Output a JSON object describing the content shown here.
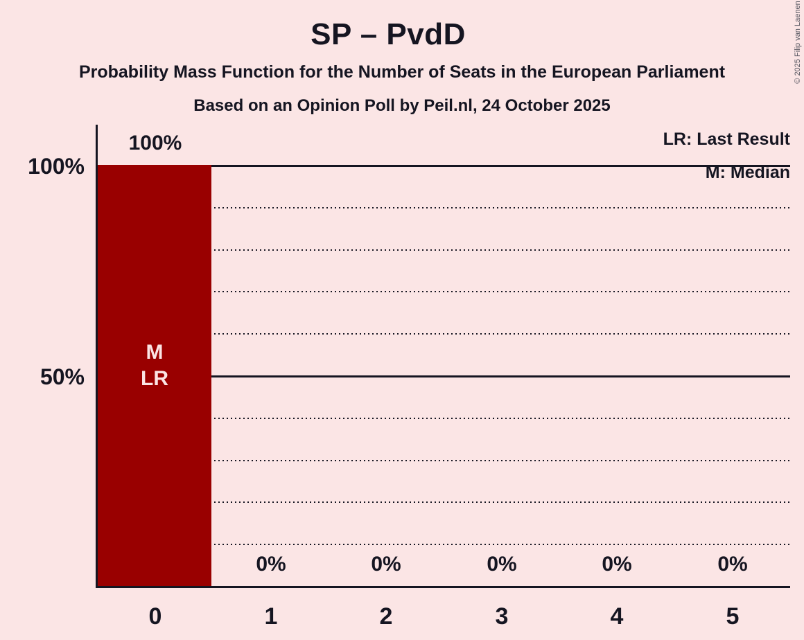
{
  "header": {
    "title": "SP – PvdD",
    "subtitle": "Probability Mass Function for the Number of Seats in the European Parliament",
    "poll_line": "Based on an Opinion Poll by Peil.nl, 24 October 2025"
  },
  "legend": {
    "last_result": "LR: Last Result",
    "median": "M: Median"
  },
  "copyright": "© 2025 Filip van Laenen",
  "colors": {
    "background": "#fbe5e5",
    "bar": "#990000",
    "ink": "#151521",
    "bar_label": "#fbe5e5"
  },
  "chart_data": {
    "type": "bar",
    "title": "SP – PvdD",
    "xlabel": "",
    "ylabel": "",
    "categories": [
      "0",
      "1",
      "2",
      "3",
      "4",
      "5"
    ],
    "values": [
      100,
      0,
      0,
      0,
      0,
      0
    ],
    "value_labels": [
      "100%",
      "0%",
      "0%",
      "0%",
      "0%",
      "0%"
    ],
    "ylim": [
      0,
      100
    ],
    "yticks": [
      {
        "value": 100,
        "label": "100%"
      },
      {
        "value": 50,
        "label": "50%"
      }
    ],
    "gridlines": {
      "solid": [
        100,
        50
      ],
      "dotted": [
        90,
        80,
        70,
        60,
        40,
        30,
        20,
        10
      ]
    },
    "legend_position": "top-right",
    "annotations": [
      {
        "bar": "0",
        "labels": [
          "M",
          "LR"
        ],
        "meaning": [
          "Median",
          "Last Result"
        ]
      }
    ]
  }
}
